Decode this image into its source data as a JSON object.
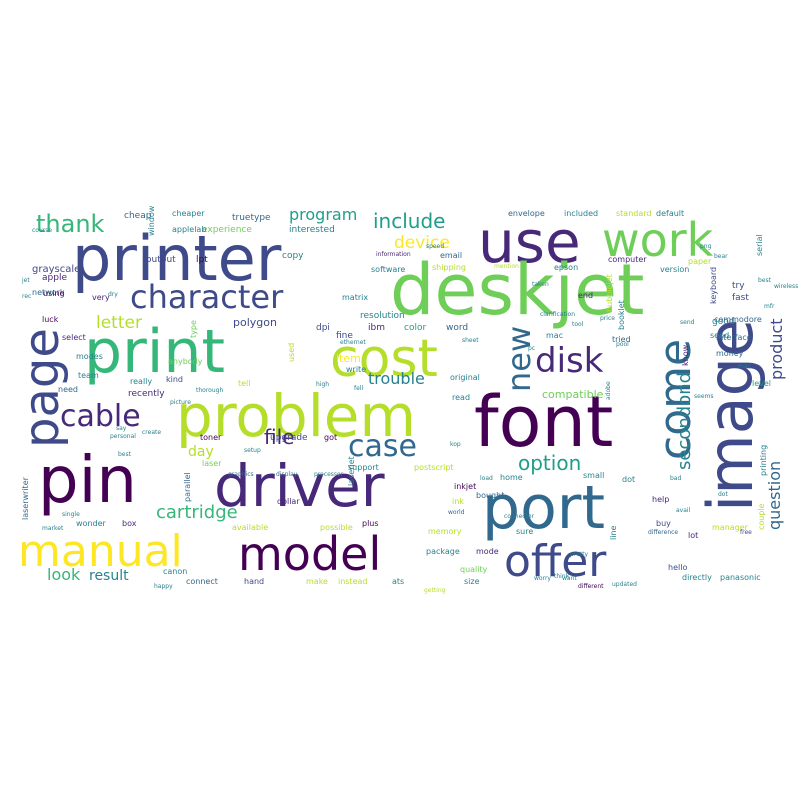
{
  "palette": [
    "#440154",
    "#482878",
    "#3e4a89",
    "#31688e",
    "#26828e",
    "#1f9e89",
    "#35b779",
    "#6ece58",
    "#b5de2b",
    "#fde725"
  ],
  "words": [
    {
      "text": "printer",
      "color": "#3e4a89"
    },
    {
      "text": "use",
      "color": "#482878"
    },
    {
      "text": "deskjet",
      "color": "#6ece58"
    },
    {
      "text": "work",
      "color": "#6ece58"
    },
    {
      "text": "print",
      "color": "#35b779"
    },
    {
      "text": "cost",
      "color": "#b5de2b"
    },
    {
      "text": "problem",
      "color": "#b5de2b"
    },
    {
      "text": "font",
      "color": "#440154"
    },
    {
      "text": "page",
      "color": "#3e4a89"
    },
    {
      "text": "image",
      "color": "#3e4a89"
    },
    {
      "text": "come",
      "color": "#31688e"
    },
    {
      "text": "pin",
      "color": "#440154"
    },
    {
      "text": "driver",
      "color": "#482878"
    },
    {
      "text": "port",
      "color": "#31688e"
    },
    {
      "text": "manual",
      "color": "#fde725"
    },
    {
      "text": "model",
      "color": "#440154"
    },
    {
      "text": "offer",
      "color": "#3e4a89"
    },
    {
      "text": "character",
      "color": "#3e4a89"
    },
    {
      "text": "disk",
      "color": "#482878"
    },
    {
      "text": "new",
      "color": "#31688e"
    },
    {
      "text": "cable",
      "color": "#482878"
    },
    {
      "text": "case",
      "color": "#31688e"
    },
    {
      "text": "thank",
      "color": "#35b779"
    },
    {
      "text": "option",
      "color": "#1f9e89"
    },
    {
      "text": "file",
      "color": "#482878"
    },
    {
      "text": "cartridge",
      "color": "#35b779"
    },
    {
      "text": "secondond",
      "color": "#26828e"
    },
    {
      "text": "product",
      "color": "#3e4a89"
    },
    {
      "text": "question",
      "color": "#31688e"
    },
    {
      "text": "include",
      "color": "#1f9e89"
    },
    {
      "text": "device",
      "color": "#fde725"
    },
    {
      "text": "program",
      "color": "#1f9e89"
    },
    {
      "text": "letter",
      "color": "#b5de2b"
    },
    {
      "text": "trouble",
      "color": "#26828e"
    },
    {
      "text": "day",
      "color": "#b5de2b"
    },
    {
      "text": "look",
      "color": "#35b779"
    },
    {
      "text": "result",
      "color": "#26828e"
    },
    {
      "text": "polygon",
      "color": "#3e4a89"
    },
    {
      "text": "compatible",
      "color": "#6ece58"
    },
    {
      "text": "item",
      "color": "#fde725"
    },
    {
      "text": "recently",
      "color": "#482878"
    },
    {
      "text": "upgrade",
      "color": "#3e4a89"
    },
    {
      "text": "grayscale",
      "color": "#3e4a89"
    },
    {
      "text": "cheap",
      "color": "#31688e"
    },
    {
      "text": "apple",
      "color": "#482878"
    },
    {
      "text": "output",
      "color": "#3e4a89"
    },
    {
      "text": "lpt",
      "color": "#440154"
    },
    {
      "text": "truetype",
      "color": "#31688e"
    },
    {
      "text": "experience",
      "color": "#6ece58"
    },
    {
      "text": "interested",
      "color": "#26828e"
    },
    {
      "text": "copy",
      "color": "#26828e"
    },
    {
      "text": "software",
      "color": "#26828e"
    },
    {
      "text": "shipping",
      "color": "#b5de2b"
    },
    {
      "text": "epson",
      "color": "#26828e"
    },
    {
      "text": "computer",
      "color": "#482878"
    },
    {
      "text": "paper",
      "color": "#b5de2b"
    },
    {
      "text": "version",
      "color": "#26828e"
    },
    {
      "text": "keyboard",
      "color": "#3e4a89"
    },
    {
      "text": "fast",
      "color": "#3e4a89"
    },
    {
      "text": "try",
      "color": "#3e4a89"
    },
    {
      "text": "good",
      "color": "#26828e"
    },
    {
      "text": "send",
      "color": "#26828e"
    },
    {
      "text": "level",
      "color": "#1f9e89"
    },
    {
      "text": "end",
      "color": "#482878"
    },
    {
      "text": "mac",
      "color": "#26828e"
    },
    {
      "text": "tried",
      "color": "#31688e"
    },
    {
      "text": "dpi",
      "color": "#3e4a89"
    },
    {
      "text": "ibm",
      "color": "#482878"
    },
    {
      "text": "color",
      "color": "#1f9e89"
    },
    {
      "text": "word",
      "color": "#31688e"
    },
    {
      "text": "resolution",
      "color": "#26828e"
    },
    {
      "text": "fine",
      "color": "#3e4a89"
    },
    {
      "text": "matrix",
      "color": "#26828e"
    },
    {
      "text": "select",
      "color": "#482878"
    },
    {
      "text": "luck",
      "color": "#440154"
    },
    {
      "text": "network",
      "color": "#31688e"
    },
    {
      "text": "using",
      "color": "#440154"
    },
    {
      "text": "modes",
      "color": "#26828e"
    },
    {
      "text": "need",
      "color": "#31688e"
    },
    {
      "text": "team",
      "color": "#26828e"
    },
    {
      "text": "anybody",
      "color": "#6ece58"
    },
    {
      "text": "kind",
      "color": "#3e4a89"
    },
    {
      "text": "really",
      "color": "#26828e"
    },
    {
      "text": "tell",
      "color": "#b5de2b"
    },
    {
      "text": "original",
      "color": "#26828e"
    },
    {
      "text": "read",
      "color": "#26828e"
    },
    {
      "text": "bought",
      "color": "#31688e"
    },
    {
      "text": "home",
      "color": "#26828e"
    },
    {
      "text": "small",
      "color": "#26828e"
    },
    {
      "text": "inkjet",
      "color": "#440154"
    },
    {
      "text": "postscript",
      "color": "#b5de2b"
    },
    {
      "text": "support",
      "color": "#26828e"
    },
    {
      "text": "toner",
      "color": "#440154"
    },
    {
      "text": "got",
      "color": "#440154"
    },
    {
      "text": "dollar",
      "color": "#482878"
    },
    {
      "text": "ink",
      "color": "#b5de2b"
    },
    {
      "text": "laser",
      "color": "#6ece58"
    },
    {
      "text": "parallel",
      "color": "#31688e"
    },
    {
      "text": "box",
      "color": "#482878"
    },
    {
      "text": "wonder",
      "color": "#26828e"
    },
    {
      "text": "available",
      "color": "#b5de2b"
    },
    {
      "text": "possible",
      "color": "#b5de2b"
    },
    {
      "text": "plus",
      "color": "#440154"
    },
    {
      "text": "memory",
      "color": "#b5de2b"
    },
    {
      "text": "package",
      "color": "#26828e"
    },
    {
      "text": "mode",
      "color": "#482878"
    },
    {
      "text": "sure",
      "color": "#26828e"
    },
    {
      "text": "quality",
      "color": "#6ece58"
    },
    {
      "text": "size",
      "color": "#26828e"
    },
    {
      "text": "canon",
      "color": "#26828e"
    },
    {
      "text": "connect",
      "color": "#31688e"
    },
    {
      "text": "hand",
      "color": "#3e4a89"
    },
    {
      "text": "make",
      "color": "#b5de2b"
    },
    {
      "text": "instead",
      "color": "#b5de2b"
    },
    {
      "text": "ats",
      "color": "#26828e"
    },
    {
      "text": "line",
      "color": "#26828e"
    },
    {
      "text": "buy",
      "color": "#3e4a89"
    },
    {
      "text": "help",
      "color": "#482878"
    },
    {
      "text": "dot",
      "color": "#26828e"
    },
    {
      "text": "hello",
      "color": "#3e4a89"
    },
    {
      "text": "directly",
      "color": "#26828e"
    },
    {
      "text": "panasonic",
      "color": "#26828e"
    },
    {
      "text": "manager",
      "color": "#b5de2b"
    },
    {
      "text": "lot",
      "color": "#482878"
    },
    {
      "text": "printing",
      "color": "#26828e"
    },
    {
      "text": "couple",
      "color": "#b5de2b"
    },
    {
      "text": "laserwriter",
      "color": "#31688e"
    },
    {
      "text": "window",
      "color": "#26828e"
    },
    {
      "text": "email",
      "color": "#31688e"
    },
    {
      "text": "interface",
      "color": "#31688e"
    },
    {
      "text": "commodore",
      "color": "#31688e"
    },
    {
      "text": "serial",
      "color": "#26828e"
    },
    {
      "text": "money",
      "color": "#31688e"
    },
    {
      "text": "know",
      "color": "#482878"
    },
    {
      "text": "used",
      "color": "#b5de2b"
    },
    {
      "text": "write",
      "color": "#26828e"
    },
    {
      "text": "cheaper",
      "color": "#26828e"
    },
    {
      "text": "laserjet",
      "color": "#26828e"
    },
    {
      "text": "applelab",
      "color": "#26828e"
    },
    {
      "text": "envelope",
      "color": "#31688e"
    },
    {
      "text": "included",
      "color": "#26828e"
    },
    {
      "text": "standard",
      "color": "#b5de2b"
    },
    {
      "text": "default",
      "color": "#26828e"
    },
    {
      "text": "information",
      "color": "#482878"
    },
    {
      "text": "speed",
      "color": "#26828e"
    },
    {
      "text": "clarification",
      "color": "#26828e"
    },
    {
      "text": "mention",
      "color": "#b5de2b"
    },
    {
      "text": "free",
      "color": "#3e4a89"
    },
    {
      "text": "difference",
      "color": "#31688e"
    },
    {
      "text": "worry",
      "color": "#26828e"
    },
    {
      "text": "different",
      "color": "#440154"
    },
    {
      "text": "updated",
      "color": "#26828e"
    },
    {
      "text": "happy",
      "color": "#26828e"
    },
    {
      "text": "market",
      "color": "#26828e"
    },
    {
      "text": "single",
      "color": "#26828e"
    },
    {
      "text": "personal",
      "color": "#26828e"
    },
    {
      "text": "create",
      "color": "#26828e"
    },
    {
      "text": "setup",
      "color": "#26828e"
    },
    {
      "text": "graphics",
      "color": "#31688e"
    },
    {
      "text": "display",
      "color": "#31688e"
    },
    {
      "text": "processor",
      "color": "#26828e"
    },
    {
      "text": "ethernet",
      "color": "#26828e"
    },
    {
      "text": "thorough",
      "color": "#26828e"
    },
    {
      "text": "high",
      "color": "#26828e"
    },
    {
      "text": "adobe",
      "color": "#26828e"
    },
    {
      "text": "want",
      "color": "#26828e"
    },
    {
      "text": "think",
      "color": "#26828e"
    },
    {
      "text": "picture",
      "color": "#26828e"
    },
    {
      "text": "sheet",
      "color": "#26828e"
    },
    {
      "text": "price",
      "color": "#26828e"
    },
    {
      "text": "getting",
      "color": "#b5de2b"
    },
    {
      "text": "world",
      "color": "#31688e"
    },
    {
      "text": "load",
      "color": "#26828e"
    },
    {
      "text": "bad",
      "color": "#26828e"
    },
    {
      "text": "type",
      "color": "#6ece58"
    },
    {
      "text": "avail",
      "color": "#26828e"
    },
    {
      "text": "very",
      "color": "#482878"
    },
    {
      "text": "dry",
      "color": "#26828e"
    },
    {
      "text": "best",
      "color": "#26828e"
    },
    {
      "text": "course",
      "color": "#26828e"
    },
    {
      "text": "jet",
      "color": "#26828e"
    },
    {
      "text": "seems",
      "color": "#26828e"
    },
    {
      "text": "pool",
      "color": "#26828e"
    },
    {
      "text": "rec",
      "color": "#26828e"
    },
    {
      "text": "fell",
      "color": "#26828e"
    },
    {
      "text": "say",
      "color": "#26828e"
    },
    {
      "text": "kop",
      "color": "#26828e"
    },
    {
      "text": "bear",
      "color": "#26828e"
    },
    {
      "text": "pretty",
      "color": "#26828e"
    },
    {
      "text": "connector",
      "color": "#26828e"
    },
    {
      "text": "wireless",
      "color": "#26828e"
    },
    {
      "text": "dot",
      "color": "#26828e"
    },
    {
      "text": "taken",
      "color": "#26828e"
    },
    {
      "text": "booklet",
      "color": "#26828e"
    },
    {
      "text": "send",
      "color": "#26828e"
    },
    {
      "text": "png",
      "color": "#26828e"
    },
    {
      "text": "tool",
      "color": "#26828e"
    },
    {
      "text": "mac",
      "color": "#26828e"
    },
    {
      "text": "pc",
      "color": "#26828e"
    },
    {
      "text": "best",
      "color": "#26828e"
    },
    {
      "text": "bubblejet",
      "color": "#b5de2b"
    },
    {
      "text": "mfr",
      "color": "#26828e"
    }
  ]
}
